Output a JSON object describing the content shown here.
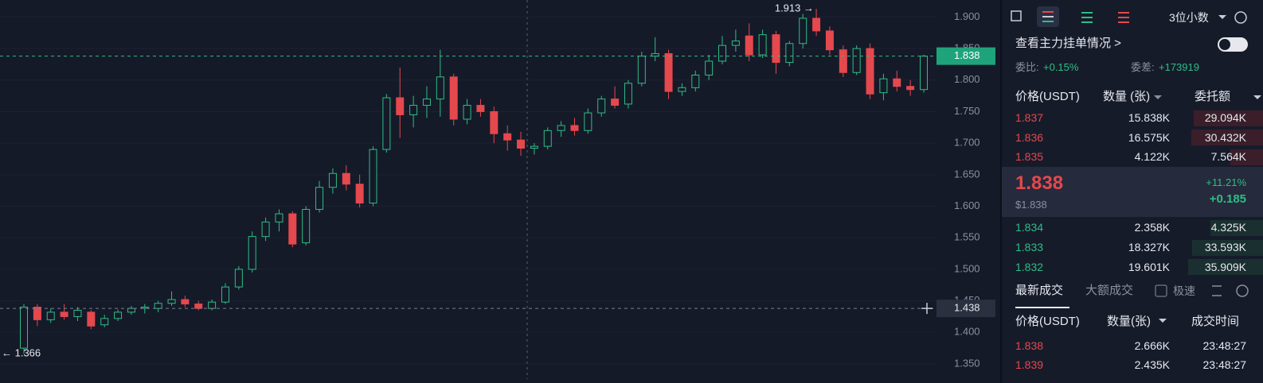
{
  "chart_data": {
    "type": "candlestick",
    "open": [
      1.375,
      1.44,
      1.42,
      1.432,
      1.425,
      1.432,
      1.412,
      1.422,
      1.432,
      1.438,
      1.438,
      1.446,
      1.452,
      1.445,
      1.438,
      1.448,
      1.472,
      1.5,
      1.552,
      1.575,
      1.588,
      1.542,
      1.595,
      1.63,
      1.652,
      1.635,
      1.605,
      1.69,
      1.772,
      1.745,
      1.76,
      1.77,
      1.805,
      1.738,
      1.76,
      1.75,
      1.715,
      1.705,
      1.692,
      1.695,
      1.72,
      1.728,
      1.72,
      1.748,
      1.77,
      1.762,
      1.795,
      1.838,
      1.842,
      1.782,
      1.788,
      1.808,
      1.83,
      1.855,
      1.87,
      1.84,
      1.872,
      1.828,
      1.858,
      1.898,
      1.878,
      1.848,
      1.812,
      1.85,
      1.78,
      1.802,
      1.79,
      1.785
    ],
    "high": [
      1.445,
      1.445,
      1.438,
      1.445,
      1.44,
      1.435,
      1.428,
      1.436,
      1.442,
      1.445,
      1.45,
      1.465,
      1.458,
      1.45,
      1.452,
      1.478,
      1.505,
      1.56,
      1.582,
      1.595,
      1.592,
      1.6,
      1.64,
      1.66,
      1.665,
      1.65,
      1.695,
      1.778,
      1.82,
      1.775,
      1.79,
      1.848,
      1.81,
      1.77,
      1.77,
      1.758,
      1.728,
      1.718,
      1.7,
      1.725,
      1.735,
      1.74,
      1.755,
      1.775,
      1.79,
      1.8,
      1.845,
      1.868,
      1.848,
      1.795,
      1.815,
      1.84,
      1.87,
      1.88,
      1.89,
      1.88,
      1.878,
      1.862,
      1.905,
      1.913,
      1.885,
      1.855,
      1.855,
      1.858,
      1.81,
      1.815,
      1.8,
      1.84
    ],
    "low": [
      1.366,
      1.41,
      1.415,
      1.42,
      1.418,
      1.405,
      1.408,
      1.418,
      1.428,
      1.43,
      1.432,
      1.442,
      1.44,
      1.435,
      1.435,
      1.445,
      1.468,
      1.495,
      1.545,
      1.56,
      1.535,
      1.538,
      1.59,
      1.62,
      1.625,
      1.598,
      1.6,
      1.685,
      1.708,
      1.725,
      1.74,
      1.742,
      1.728,
      1.73,
      1.742,
      1.7,
      1.688,
      1.68,
      1.682,
      1.69,
      1.71,
      1.712,
      1.715,
      1.742,
      1.755,
      1.755,
      1.79,
      1.83,
      1.77,
      1.775,
      1.782,
      1.8,
      1.825,
      1.845,
      1.83,
      1.835,
      1.81,
      1.822,
      1.85,
      1.87,
      1.84,
      1.805,
      1.808,
      1.77,
      1.768,
      1.782,
      1.775,
      1.78
    ],
    "close": [
      1.44,
      1.42,
      1.432,
      1.425,
      1.435,
      1.41,
      1.422,
      1.432,
      1.438,
      1.44,
      1.446,
      1.452,
      1.445,
      1.438,
      1.448,
      1.472,
      1.5,
      1.552,
      1.575,
      1.588,
      1.54,
      1.595,
      1.63,
      1.652,
      1.635,
      1.605,
      1.69,
      1.772,
      1.745,
      1.76,
      1.77,
      1.805,
      1.738,
      1.76,
      1.75,
      1.715,
      1.705,
      1.692,
      1.695,
      1.72,
      1.728,
      1.72,
      1.748,
      1.77,
      1.76,
      1.795,
      1.838,
      1.842,
      1.782,
      1.788,
      1.808,
      1.83,
      1.855,
      1.862,
      1.84,
      1.872,
      1.828,
      1.858,
      1.898,
      1.878,
      1.848,
      1.812,
      1.85,
      1.778,
      1.802,
      1.79,
      1.785,
      1.838
    ],
    "up_color": "#2ebd85",
    "down_color": "#e5484d",
    "ylim": [
      1.326,
      1.927
    ],
    "yticks": [
      {
        "value": 1.35,
        "label": "1.350"
      },
      {
        "value": 1.4,
        "label": "1.400"
      },
      {
        "value": 1.45,
        "label": "1.450"
      },
      {
        "value": 1.5,
        "label": "1.500"
      },
      {
        "value": 1.55,
        "label": "1.550"
      },
      {
        "value": 1.6,
        "label": "1.600"
      },
      {
        "value": 1.65,
        "label": "1.650"
      },
      {
        "value": 1.7,
        "label": "1.700"
      },
      {
        "value": 1.75,
        "label": "1.750"
      },
      {
        "value": 1.8,
        "label": "1.800"
      },
      {
        "value": 1.85,
        "label": "1.850"
      },
      {
        "value": 1.9,
        "label": "1.900"
      }
    ],
    "grid": true,
    "last_price": 1.838,
    "crosshair_price": 1.438,
    "annotations": [
      {
        "value": 1.913,
        "label": "1.913 →"
      },
      {
        "value": 1.366,
        "label": "← 1.366"
      }
    ]
  },
  "order_book": {
    "decimals": "3位小数",
    "main_orders": "查看主力挂单情况 >",
    "ratio_label": "委比:",
    "ratio": "+0.15%",
    "diff_label": "委差:",
    "diff": "+173919",
    "headers": [
      "价格(USDT)",
      "数量 (张)",
      "委托额"
    ],
    "asks": [
      [
        "1.837",
        "15.838K",
        "29.094K"
      ],
      [
        "1.836",
        "16.575K",
        "30.432K"
      ],
      [
        "1.835",
        "4.122K",
        "7.564K"
      ]
    ],
    "mid": {
      "price": "1.838",
      "usd": "$1.838",
      "change_pct": "+11.21%",
      "change": "+0.185"
    },
    "bids": [
      [
        "1.834",
        "2.358K",
        "4.325K"
      ],
      [
        "1.833",
        "18.327K",
        "33.593K"
      ],
      [
        "1.832",
        "19.601K",
        "35.909K"
      ]
    ]
  },
  "trades": {
    "tabs": [
      "最新成交",
      "大额成交"
    ],
    "fast": "极速",
    "headers": [
      "价格(USDT)",
      "数量(张)",
      "成交时间"
    ],
    "rows": [
      [
        "1.838",
        "2.666K",
        "23:48:27"
      ],
      [
        "1.839",
        "2.435K",
        "23:48:27"
      ]
    ]
  }
}
